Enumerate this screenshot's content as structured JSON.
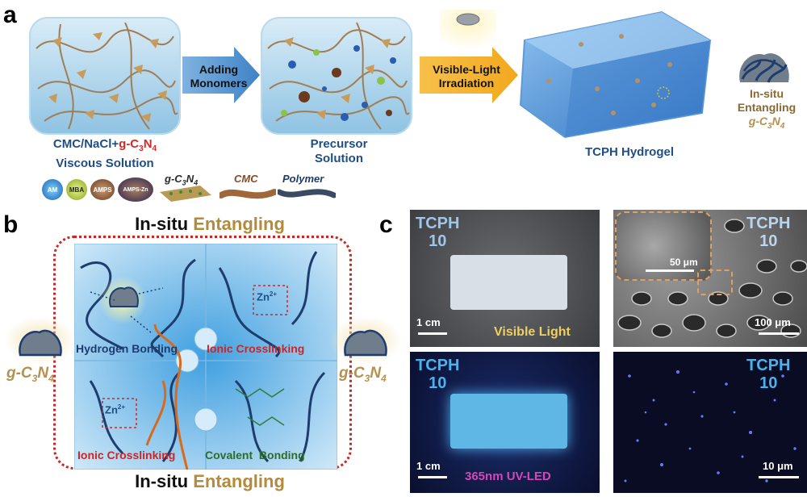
{
  "panel_a": {
    "letter": "a",
    "step1_caption_prefix": "CMC/NaCl+",
    "step1_caption_gcn_g": "g",
    "step1_caption_gcn_rest": "-C",
    "step1_caption_sub3": "3",
    "step1_caption_N": "N",
    "step1_caption_sub4": "4",
    "step1_caption_line2": "Viscous Solution",
    "arrow1_line1": "Adding",
    "arrow1_line2": "Monomers",
    "step2_line1": "Precursor",
    "step2_line2": "Solution",
    "arrow2_line1": "Visible-Light",
    "arrow2_line2": "Irradiation",
    "step3_caption": "TCPH Hydrogel",
    "entangle_line1": "In-situ",
    "entangle_line2": "Entangling",
    "entangle_line3": "g-C",
    "entangle_sub3": "3",
    "entangle_N": "N",
    "entangle_sub4": "4",
    "legend": {
      "am": "AM",
      "mba": "MBA",
      "amps": "AMPS",
      "amps_zn": "AMPS-Zn",
      "gcn": "g-C",
      "gcn_sub3": "3",
      "gcn_N": "N",
      "gcn_sub4": "4",
      "cmc": "CMC",
      "polymer": "Polymer"
    }
  },
  "panel_b": {
    "letter": "b",
    "title_top_1": "In-situ",
    "title_top_2": "Entangling",
    "title_bottom_1": "In-situ",
    "title_bottom_2": "Entangling",
    "hydrogen_1": "Hydrogen",
    "hydrogen_2": "Bonding",
    "ionic_tr": "Ionic Crosslinking",
    "ionic_bl": "Ionic Crosslinking",
    "covalent_1": "Covalent",
    "covalent_2": "Bonding",
    "zn": "Zn",
    "zn_sup": "2+",
    "left_gcn": "g-C",
    "left_sub3": "3",
    "left_N": "N",
    "left_sub4": "4",
    "right_gcn": "g-C",
    "right_sub3": "3",
    "right_N": "N",
    "right_sub4": "4"
  },
  "panel_c": {
    "letter": "c",
    "photo1": {
      "tcph": "TCPH",
      "num": "10",
      "scale": "1 cm",
      "label": "Visible Light"
    },
    "photo2": {
      "tcph": "TCPH",
      "num": "10",
      "scale_inset": "50 μm",
      "scale": "100 μm"
    },
    "photo3": {
      "tcph": "TCPH",
      "num": "10",
      "scale": "1 cm",
      "label": "365nm UV-LED"
    },
    "photo4": {
      "tcph": "TCPH",
      "num": "10",
      "scale": "10 μm"
    }
  }
}
